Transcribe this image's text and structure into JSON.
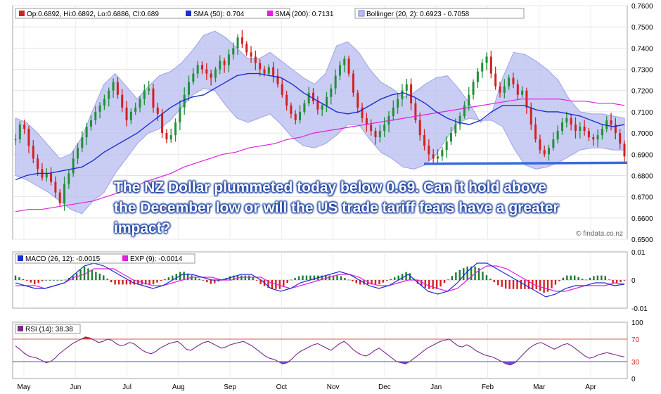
{
  "chart_data": [
    {
      "type": "candlestick",
      "ylim": [
        0.65,
        0.76
      ],
      "y_ticks": [
        "0.7600",
        "0.7500",
        "0.7400",
        "0.7300",
        "0.7200",
        "0.7100",
        "0.7000",
        "0.6900",
        "0.6800",
        "0.6700",
        "0.6600",
        "0.6500"
      ],
      "x_ticks": [
        "May",
        "Jun",
        "Jul",
        "Aug",
        "Sep",
        "Oct",
        "Nov",
        "Dec",
        "Jan",
        "Feb",
        "Mar",
        "Apr"
      ],
      "legend": [
        {
          "label": "Op:0.6892, Hi:0.6892, Lo:0.6886, Cl:0.689",
          "color": "#d42020"
        },
        {
          "label": "SMA (50): 0.704",
          "color": "#1a2fd0"
        },
        {
          "label": "SMA (200): 0.7131",
          "color": "#e020e0"
        },
        {
          "label": "Bollinger (20, 2): 0.6923 - 0.7058",
          "color": "#b8bcef"
        }
      ],
      "close_series": [
        0.697,
        0.704,
        0.702,
        0.694,
        0.688,
        0.683,
        0.679,
        0.681,
        0.677,
        0.672,
        0.667,
        0.676,
        0.681,
        0.688,
        0.693,
        0.698,
        0.703,
        0.706,
        0.71,
        0.713,
        0.716,
        0.72,
        0.724,
        0.718,
        0.712,
        0.706,
        0.71,
        0.712,
        0.716,
        0.72,
        0.721,
        0.712,
        0.709,
        0.7,
        0.697,
        0.699,
        0.705,
        0.712,
        0.718,
        0.724,
        0.728,
        0.732,
        0.73,
        0.728,
        0.726,
        0.73,
        0.734,
        0.732,
        0.737,
        0.74,
        0.745,
        0.742,
        0.738,
        0.736,
        0.733,
        0.73,
        0.728,
        0.731,
        0.727,
        0.723,
        0.718,
        0.713,
        0.709,
        0.706,
        0.71,
        0.714,
        0.719,
        0.715,
        0.711,
        0.713,
        0.717,
        0.721,
        0.727,
        0.732,
        0.735,
        0.728,
        0.719,
        0.712,
        0.707,
        0.704,
        0.701,
        0.698,
        0.701,
        0.704,
        0.708,
        0.712,
        0.716,
        0.72,
        0.723,
        0.714,
        0.706,
        0.699,
        0.694,
        0.69,
        0.688,
        0.689,
        0.692,
        0.696,
        0.7,
        0.704,
        0.708,
        0.713,
        0.718,
        0.724,
        0.729,
        0.733,
        0.736,
        0.728,
        0.722,
        0.719,
        0.722,
        0.726,
        0.723,
        0.718,
        0.72,
        0.712,
        0.704,
        0.697,
        0.692,
        0.69,
        0.693,
        0.697,
        0.701,
        0.705,
        0.707,
        0.704,
        0.701,
        0.703,
        0.701,
        0.698,
        0.697,
        0.699,
        0.702,
        0.706,
        0.704,
        0.7,
        0.695,
        0.689
      ],
      "sma50": [
        0.678,
        0.68,
        0.681,
        0.681,
        0.682,
        0.683,
        0.684,
        0.687,
        0.691,
        0.694,
        0.697,
        0.7,
        0.704,
        0.708,
        0.712,
        0.715,
        0.717,
        0.718,
        0.721,
        0.724,
        0.727,
        0.728,
        0.728,
        0.727,
        0.726,
        0.723,
        0.719,
        0.716,
        0.713,
        0.71,
        0.709,
        0.71,
        0.713,
        0.716,
        0.718,
        0.719,
        0.717,
        0.714,
        0.71,
        0.707,
        0.705,
        0.704,
        0.706,
        0.71,
        0.713,
        0.713,
        0.713,
        0.711,
        0.71,
        0.71,
        0.709,
        0.708,
        0.706,
        0.704,
        0.703,
        0.704
      ],
      "sma200": [
        0.663,
        0.664,
        0.664,
        0.665,
        0.666,
        0.667,
        0.668,
        0.67,
        0.672,
        0.674,
        0.677,
        0.679,
        0.681,
        0.684,
        0.686,
        0.688,
        0.69,
        0.691,
        0.693,
        0.694,
        0.695,
        0.697,
        0.698,
        0.7,
        0.701,
        0.702,
        0.703,
        0.704,
        0.705,
        0.706,
        0.707,
        0.708,
        0.709,
        0.71,
        0.711,
        0.712,
        0.713,
        0.714,
        0.715,
        0.716,
        0.716,
        0.716,
        0.716,
        0.715,
        0.715,
        0.714,
        0.714,
        0.713
      ],
      "bollinger_upper": [
        0.707,
        0.705,
        0.7,
        0.694,
        0.688,
        0.69,
        0.698,
        0.711,
        0.723,
        0.728,
        0.722,
        0.716,
        0.722,
        0.727,
        0.729,
        0.733,
        0.739,
        0.746,
        0.748,
        0.745,
        0.74,
        0.735,
        0.735,
        0.738,
        0.734,
        0.73,
        0.726,
        0.723,
        0.728,
        0.741,
        0.743,
        0.738,
        0.73,
        0.724,
        0.721,
        0.717,
        0.719,
        0.723,
        0.726,
        0.727,
        0.721,
        0.714,
        0.705,
        0.709,
        0.726,
        0.738,
        0.737,
        0.734,
        0.73,
        0.725,
        0.716,
        0.71,
        0.709,
        0.709,
        0.708,
        0.707
      ],
      "bollinger_lower": [
        0.68,
        0.678,
        0.675,
        0.672,
        0.668,
        0.664,
        0.662,
        0.668,
        0.672,
        0.681,
        0.688,
        0.695,
        0.7,
        0.702,
        0.706,
        0.712,
        0.718,
        0.721,
        0.72,
        0.713,
        0.707,
        0.705,
        0.707,
        0.709,
        0.704,
        0.698,
        0.694,
        0.693,
        0.695,
        0.699,
        0.704,
        0.704,
        0.697,
        0.691,
        0.688,
        0.684,
        0.683,
        0.685,
        0.69,
        0.698,
        0.705,
        0.707,
        0.706,
        0.706,
        0.703,
        0.693,
        0.685,
        0.683,
        0.684,
        0.686,
        0.689,
        0.692,
        0.693,
        0.693,
        0.692,
        0.692
      ],
      "trendline": {
        "from": 0.6855,
        "to": 0.686
      },
      "watermark": "© findata.co.nz",
      "annotation": "The NZ Dollar plummeted today below 0.69. Can it hold above the December low or will the US trade tariff fears have a greater impact?"
    },
    {
      "type": "macd",
      "ylim": [
        -0.01,
        0.01
      ],
      "y_ticks": [
        "0.01",
        "0",
        "-0.01"
      ],
      "legend": [
        {
          "label": "MACD (26, 12): -0.0015",
          "color": "#1a2fd0"
        },
        {
          "label": "EXP (9): -0.0014",
          "color": "#e020e0"
        }
      ],
      "macd": [
        -0.001,
        -0.002,
        -0.003,
        -0.003,
        -0.002,
        -0.001,
        0.002,
        0.005,
        0.006,
        0.005,
        0.003,
        0.001,
        -0.001,
        -0.002,
        -0.003,
        -0.002,
        0.0,
        0.002,
        0.002,
        0.001,
        0.0,
        0.0,
        0.001,
        0.002,
        0.002,
        0.0,
        -0.003,
        -0.004,
        -0.003,
        -0.001,
        0.0,
        0.001,
        0.002,
        0.003,
        0.002,
        0.0,
        -0.002,
        -0.003,
        -0.002,
        0.0,
        0.002,
        -0.001,
        -0.004,
        -0.005,
        -0.004,
        -0.001,
        0.003,
        0.006,
        0.006,
        0.004,
        0.002,
        0.0,
        -0.002,
        -0.004,
        -0.006,
        -0.005,
        -0.003,
        -0.002,
        -0.002,
        -0.001,
        -0.001,
        -0.002,
        -0.0015
      ],
      "signal": [
        -0.002,
        -0.002,
        -0.002,
        -0.003,
        -0.002,
        -0.001,
        0.001,
        0.002,
        0.004,
        0.004,
        0.004,
        0.002,
        0.0,
        -0.001,
        -0.002,
        -0.002,
        -0.001,
        0.0,
        0.001,
        0.001,
        0.001,
        0.0,
        0.0,
        0.001,
        0.001,
        0.001,
        -0.001,
        -0.002,
        -0.003,
        -0.002,
        -0.001,
        0.0,
        0.001,
        0.002,
        0.002,
        0.001,
        -0.001,
        -0.002,
        -0.002,
        -0.001,
        0.0,
        0.0,
        -0.002,
        -0.003,
        -0.004,
        -0.003,
        0.0,
        0.003,
        0.005,
        0.005,
        0.004,
        0.002,
        0.0,
        -0.002,
        -0.003,
        -0.004,
        -0.004,
        -0.003,
        -0.002,
        -0.002,
        -0.002,
        -0.001,
        -0.0014
      ]
    },
    {
      "type": "rsi",
      "ylim": [
        0,
        100
      ],
      "y_ticks": [
        "100",
        "70",
        "30",
        "0"
      ],
      "legend": [
        {
          "label": "RSI (14): 38.38",
          "color": "#7a2a8a"
        }
      ],
      "overbought": 70,
      "oversold": 30,
      "rsi": [
        58,
        52,
        45,
        40,
        38,
        36,
        32,
        28,
        30,
        36,
        44,
        50,
        56,
        62,
        66,
        70,
        74,
        72,
        68,
        64,
        66,
        70,
        68,
        62,
        58,
        60,
        64,
        62,
        56,
        50,
        46,
        44,
        48,
        54,
        58,
        62,
        64,
        66,
        60,
        52,
        50,
        55,
        60,
        64,
        66,
        62,
        58,
        54,
        56,
        60,
        62,
        64,
        66,
        62,
        58,
        52,
        46,
        40,
        36,
        34,
        30,
        26,
        28,
        34,
        42,
        48,
        52,
        56,
        60,
        62,
        58,
        54,
        50,
        56,
        62,
        66,
        60,
        52,
        46,
        42,
        40,
        44,
        50,
        54,
        48,
        42,
        36,
        30,
        28,
        26,
        30,
        36,
        42,
        48,
        54,
        58,
        62,
        66,
        68,
        70,
        64,
        58,
        56,
        60,
        56,
        50,
        46,
        42,
        40,
        38,
        34,
        30,
        26,
        24,
        28,
        36,
        44,
        52,
        58,
        62,
        64,
        60,
        56,
        52,
        56,
        60,
        62,
        58,
        52,
        46,
        40,
        36,
        38,
        42,
        44,
        46,
        44,
        42,
        40,
        38.38
      ]
    }
  ]
}
